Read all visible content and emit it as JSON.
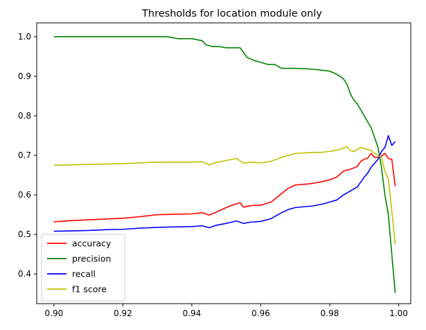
{
  "chart_data": {
    "type": "line",
    "title": "Thresholds for location module only",
    "xlabel": "",
    "ylabel": "",
    "xlim": [
      0.895,
      1.0035
    ],
    "ylim": [
      0.325,
      1.035
    ],
    "x_ticks": [
      0.9,
      0.92,
      0.94,
      0.96,
      0.98,
      1.0
    ],
    "x_tick_labels": [
      "0.90",
      "0.92",
      "0.94",
      "0.96",
      "0.98",
      "1.00"
    ],
    "y_ticks": [
      0.4,
      0.5,
      0.6,
      0.7,
      0.8,
      0.9,
      1.0
    ],
    "y_tick_labels": [
      "0.4",
      "0.5",
      "0.6",
      "0.7",
      "0.8",
      "0.9",
      "1.0"
    ],
    "grid": false,
    "legend_position": "lower-left",
    "series": [
      {
        "name": "accuracy",
        "color": "#ff0000",
        "x": [
          0.9,
          0.905,
          0.91,
          0.915,
          0.92,
          0.925,
          0.93,
          0.935,
          0.94,
          0.943,
          0.945,
          0.947,
          0.95,
          0.952,
          0.954,
          0.955,
          0.957,
          0.96,
          0.963,
          0.966,
          0.968,
          0.97,
          0.974,
          0.977,
          0.98,
          0.982,
          0.984,
          0.986,
          0.988,
          0.989,
          0.99,
          0.991,
          0.992,
          0.993,
          0.994,
          0.995,
          0.996,
          0.997,
          0.998,
          0.999
        ],
        "y": [
          0.532,
          0.535,
          0.537,
          0.539,
          0.541,
          0.545,
          0.55,
          0.551,
          0.552,
          0.555,
          0.549,
          0.556,
          0.568,
          0.575,
          0.58,
          0.569,
          0.573,
          0.574,
          0.582,
          0.603,
          0.617,
          0.625,
          0.628,
          0.632,
          0.638,
          0.645,
          0.66,
          0.665,
          0.672,
          0.685,
          0.69,
          0.693,
          0.705,
          0.695,
          0.695,
          0.698,
          0.705,
          0.692,
          0.69,
          0.622
        ]
      },
      {
        "name": "precision",
        "color": "#008000",
        "x": [
          0.9,
          0.91,
          0.92,
          0.93,
          0.933,
          0.936,
          0.94,
          0.943,
          0.944,
          0.946,
          0.948,
          0.95,
          0.952,
          0.954,
          0.955,
          0.956,
          0.958,
          0.96,
          0.962,
          0.964,
          0.966,
          0.97,
          0.975,
          0.978,
          0.98,
          0.982,
          0.983,
          0.984,
          0.985,
          0.986,
          0.987,
          0.988,
          0.989,
          0.99,
          0.991,
          0.992,
          0.993,
          0.994,
          0.995,
          0.996,
          0.997,
          0.998,
          0.999
        ],
        "y": [
          1.0,
          1.0,
          1.0,
          1.0,
          1.0,
          0.995,
          0.995,
          0.99,
          0.98,
          0.975,
          0.975,
          0.972,
          0.972,
          0.972,
          0.96,
          0.948,
          0.94,
          0.935,
          0.93,
          0.93,
          0.92,
          0.92,
          0.918,
          0.915,
          0.913,
          0.905,
          0.9,
          0.893,
          0.88,
          0.855,
          0.84,
          0.83,
          0.815,
          0.8,
          0.785,
          0.77,
          0.745,
          0.72,
          0.67,
          0.6,
          0.55,
          0.45,
          0.352
        ]
      },
      {
        "name": "recall",
        "color": "#0000ff",
        "x": [
          0.9,
          0.905,
          0.91,
          0.915,
          0.92,
          0.925,
          0.93,
          0.935,
          0.94,
          0.943,
          0.945,
          0.947,
          0.95,
          0.953,
          0.955,
          0.957,
          0.96,
          0.963,
          0.966,
          0.968,
          0.97,
          0.975,
          0.978,
          0.98,
          0.982,
          0.984,
          0.986,
          0.988,
          0.99,
          0.991,
          0.992,
          0.993,
          0.994,
          0.995,
          0.996,
          0.997,
          0.998,
          0.999
        ],
        "y": [
          0.508,
          0.509,
          0.51,
          0.512,
          0.513,
          0.516,
          0.518,
          0.519,
          0.52,
          0.522,
          0.517,
          0.523,
          0.528,
          0.534,
          0.528,
          0.531,
          0.533,
          0.54,
          0.555,
          0.563,
          0.568,
          0.572,
          0.577,
          0.582,
          0.587,
          0.6,
          0.61,
          0.62,
          0.645,
          0.655,
          0.67,
          0.68,
          0.69,
          0.71,
          0.72,
          0.75,
          0.725,
          0.735
        ]
      },
      {
        "name": "f1 score",
        "color": "#bfbf00",
        "x": [
          0.9,
          0.905,
          0.91,
          0.915,
          0.92,
          0.925,
          0.93,
          0.935,
          0.94,
          0.943,
          0.945,
          0.947,
          0.95,
          0.953,
          0.955,
          0.957,
          0.96,
          0.963,
          0.966,
          0.968,
          0.97,
          0.975,
          0.978,
          0.98,
          0.982,
          0.984,
          0.985,
          0.986,
          0.987,
          0.988,
          0.989,
          0.99,
          0.991,
          0.992,
          0.993,
          0.994,
          0.995,
          0.996,
          0.997,
          0.998,
          0.999
        ],
        "y": [
          0.675,
          0.676,
          0.677,
          0.678,
          0.679,
          0.681,
          0.683,
          0.683,
          0.683,
          0.684,
          0.676,
          0.682,
          0.687,
          0.692,
          0.68,
          0.683,
          0.681,
          0.685,
          0.695,
          0.7,
          0.705,
          0.707,
          0.708,
          0.71,
          0.713,
          0.718,
          0.722,
          0.712,
          0.71,
          0.715,
          0.72,
          0.718,
          0.715,
          0.712,
          0.705,
          0.7,
          0.695,
          0.66,
          0.64,
          0.56,
          0.475
        ]
      }
    ]
  }
}
